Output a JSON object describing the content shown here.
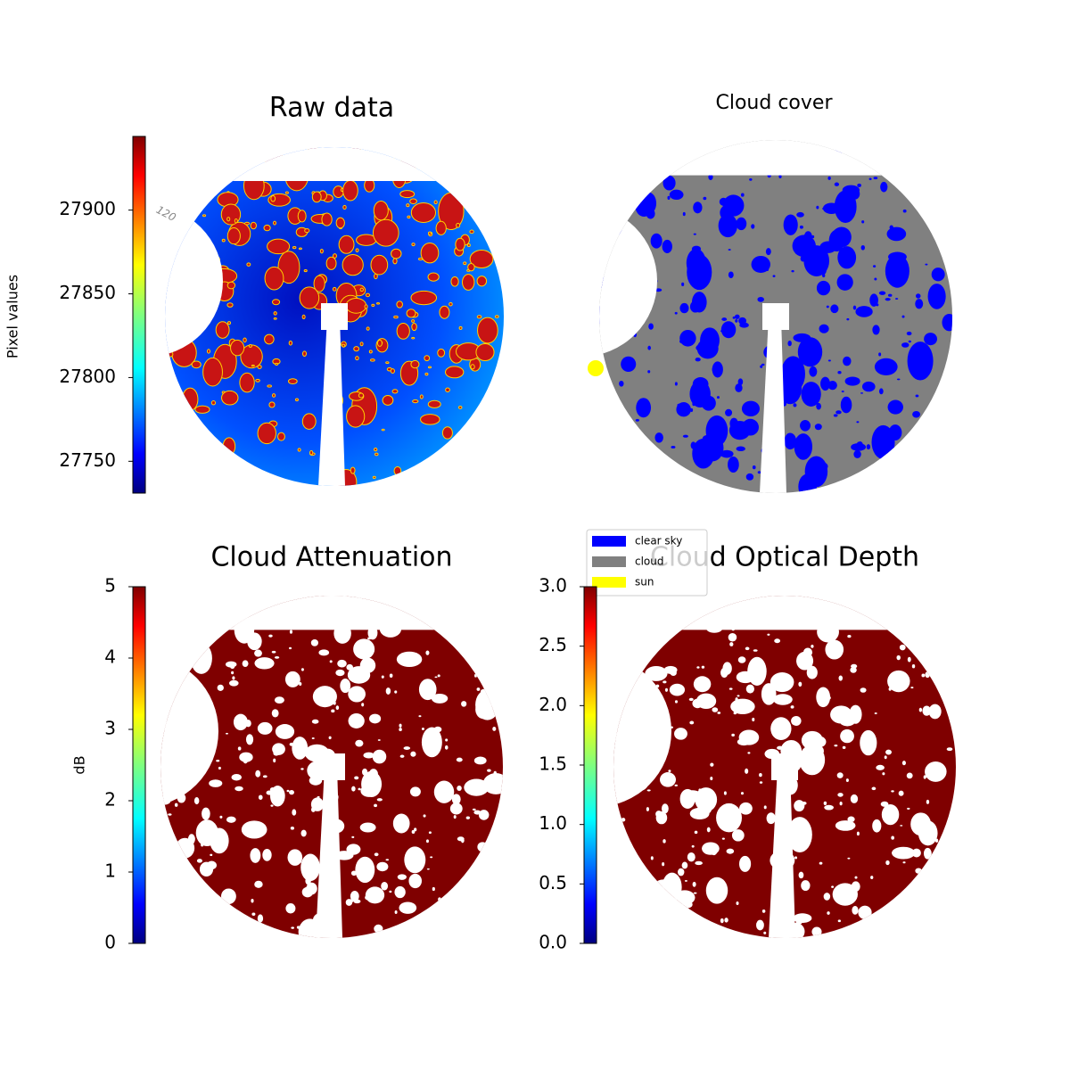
{
  "chart_data": [
    {
      "type": "image",
      "title": "Raw data",
      "annotation": "120",
      "colorbar": {
        "label": "Pixel values",
        "colormap": "jet",
        "lim": [
          27731,
          27944
        ],
        "ticks": [
          27750,
          27800,
          27850,
          27900
        ]
      }
    },
    {
      "type": "image",
      "title": "Cloud cover",
      "legend": [
        {
          "name": "clear sky",
          "color": "#0000ff"
        },
        {
          "name": "cloud",
          "color": "#808080"
        },
        {
          "name": "sun",
          "color": "#ffff00"
        }
      ]
    },
    {
      "type": "image",
      "title": "Cloud Attenuation",
      "colorbar": {
        "label": "dB",
        "colormap": "jet",
        "lim": [
          0,
          5
        ],
        "ticks": [
          0,
          1,
          2,
          3,
          4,
          5
        ]
      }
    },
    {
      "type": "image",
      "title": "Cloud Optical Depth",
      "colorbar": {
        "colormap": "jet",
        "lim": [
          0,
          3
        ],
        "ticks": [
          {
            "value": 0,
            "label": "0.0"
          },
          0.5,
          {
            "value": 1,
            "label": "1.0"
          },
          1.5,
          {
            "value": 2,
            "label": "2.0"
          },
          2.5,
          {
            "value": 3,
            "label": "3.0"
          }
        ]
      }
    }
  ]
}
